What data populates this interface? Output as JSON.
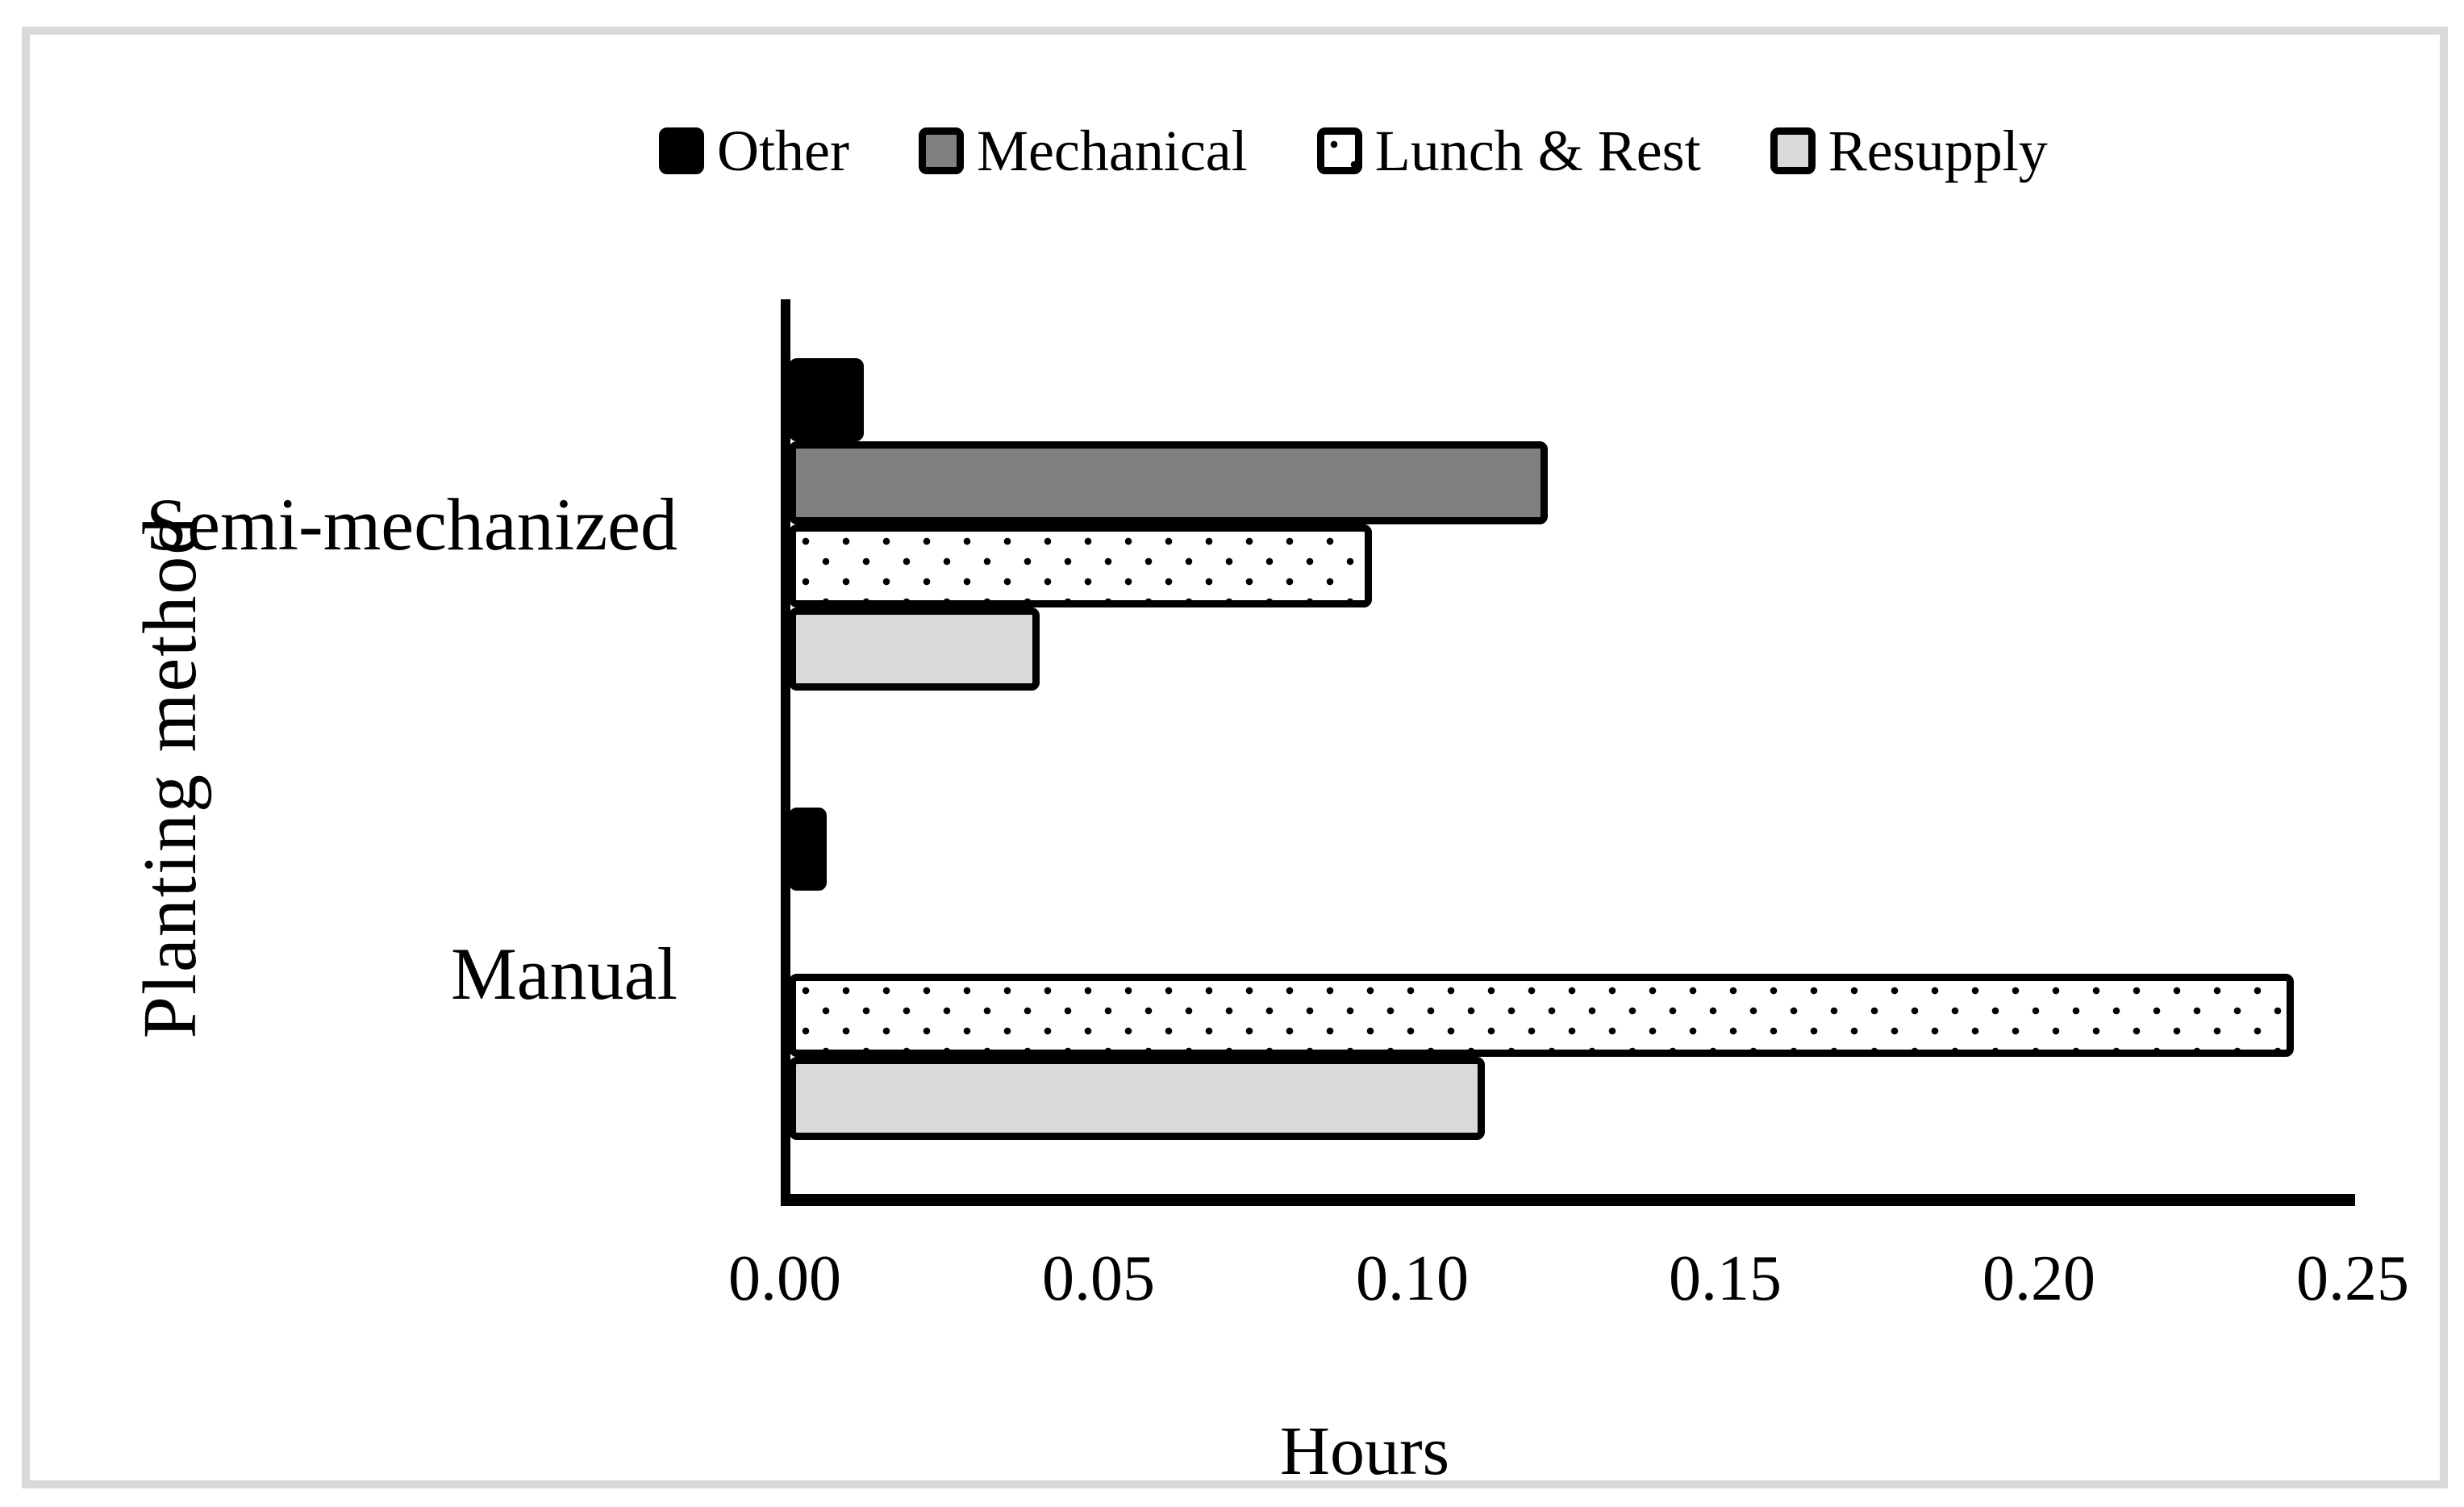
{
  "figure": {
    "background": "#ffffff",
    "frame_color": "#d9d9d9"
  },
  "legend": {
    "position": "top",
    "items": [
      {
        "label": "Other",
        "fill": "#000000",
        "pattern": "solid"
      },
      {
        "label": "Mechanical",
        "fill": "#808080",
        "pattern": "solid"
      },
      {
        "label": "Lunch & Rest",
        "fill": "#ffffff",
        "pattern": "dots"
      },
      {
        "label": "Resupply",
        "fill": "#d9d9d9",
        "pattern": "solid"
      }
    ]
  },
  "chart_data": {
    "type": "bar",
    "orientation": "horizontal",
    "title": "",
    "xlabel": "Hours",
    "ylabel": "Planting method",
    "categories": [
      "Semi-mechanized",
      "Manual"
    ],
    "series": [
      {
        "name": "Other",
        "values": [
          0.012,
          0.006
        ]
      },
      {
        "name": "Mechanical",
        "values": [
          0.121,
          0.0
        ]
      },
      {
        "name": "Lunch & Rest",
        "values": [
          0.093,
          0.24
        ]
      },
      {
        "name": "Resupply",
        "values": [
          0.04,
          0.111
        ]
      }
    ],
    "xlim": [
      0,
      0.25
    ],
    "x_ticks": [
      "0.00",
      "0.05",
      "0.10",
      "0.15",
      "0.20",
      "0.25"
    ],
    "grid": false,
    "legend_position": "top",
    "bar_outline_color": "#000000"
  }
}
